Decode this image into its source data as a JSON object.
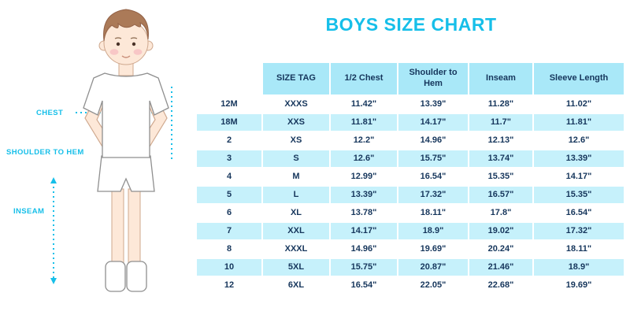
{
  "title": "BOYS SIZE CHART",
  "figure_labels": {
    "chest": "CHEST",
    "shoulder_to_hem": "SHOULDER TO HEM",
    "inseam": "INSEAM"
  },
  "chart_data": {
    "type": "table",
    "title": "BOYS SIZE CHART",
    "columns": [
      "",
      "SIZE TAG",
      "1/2 Chest",
      "Shoulder to Hem",
      "Inseam",
      "Sleeve Length"
    ],
    "rows": [
      [
        "12M",
        "XXXS",
        "11.42\"",
        "13.39\"",
        "11.28\"",
        "11.02\""
      ],
      [
        "18M",
        "XXS",
        "11.81\"",
        "14.17\"",
        "11.7\"",
        "11.81\""
      ],
      [
        "2",
        "XS",
        "12.2\"",
        "14.96\"",
        "12.13\"",
        "12.6\""
      ],
      [
        "3",
        "S",
        "12.6\"",
        "15.75\"",
        "13.74\"",
        "13.39\""
      ],
      [
        "4",
        "M",
        "12.99\"",
        "16.54\"",
        "15.35\"",
        "14.17\""
      ],
      [
        "5",
        "L",
        "13.39\"",
        "17.32\"",
        "16.57\"",
        "15.35\""
      ],
      [
        "6",
        "XL",
        "13.78\"",
        "18.11\"",
        "17.8\"",
        "16.54\""
      ],
      [
        "7",
        "XXL",
        "14.17\"",
        "18.9\"",
        "19.02\"",
        "17.32\""
      ],
      [
        "8",
        "XXXL",
        "14.96\"",
        "19.69\"",
        "20.24\"",
        "18.11\""
      ],
      [
        "10",
        "5XL",
        "15.75\"",
        "20.87\"",
        "21.46\"",
        "18.9\""
      ],
      [
        "12",
        "6XL",
        "16.54\"",
        "22.05\"",
        "22.68\"",
        "19.69\""
      ]
    ]
  },
  "colors": {
    "accent": "#16bfe9",
    "header_bg": "#a9e8f8",
    "row_alt_bg": "#c6f1fb",
    "text": "#16365c"
  }
}
